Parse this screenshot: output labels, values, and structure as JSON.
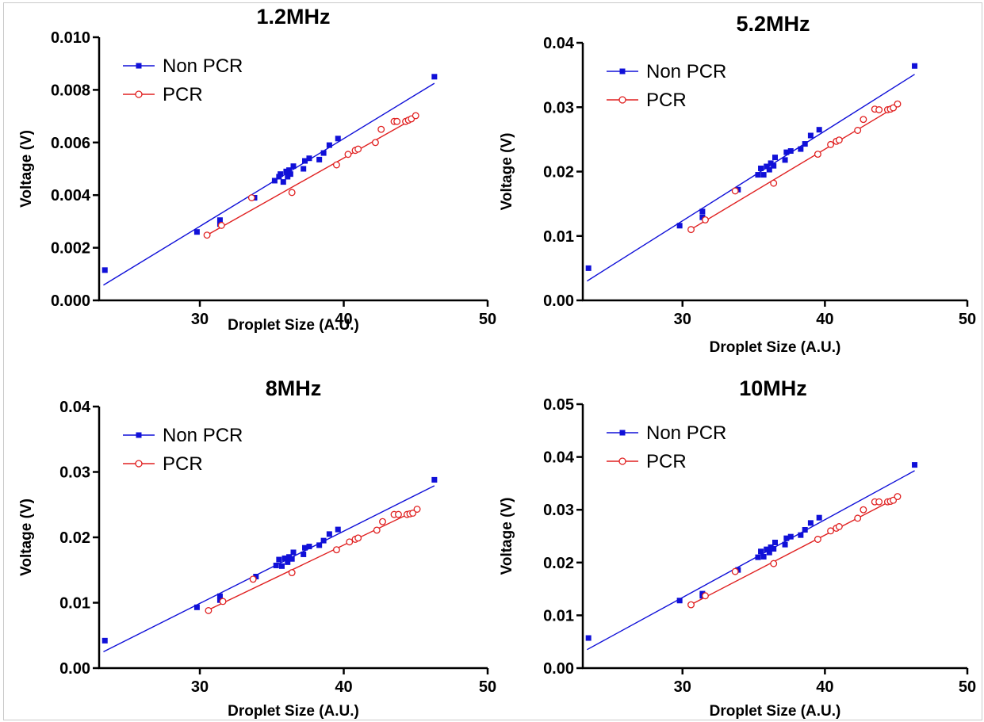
{
  "colors": {
    "non_pcr": "#1010d8",
    "pcr": "#e02020",
    "axis": "#000000"
  },
  "chart_data": [
    {
      "type": "scatter",
      "title": "1.2MHz",
      "xlabel": "Droplet Size (A.U.)",
      "ylabel": "Voltage (V)",
      "xlim": [
        23,
        50
      ],
      "ylim": [
        0,
        0.01
      ],
      "xticks": [
        30,
        40,
        50
      ],
      "xtick_labels": [
        "30",
        "40",
        "50"
      ],
      "yticks": [
        0,
        0.002,
        0.004,
        0.006,
        0.008,
        0.01
      ],
      "ytick_labels": [
        "0.000",
        "0.002",
        "0.004",
        "0.006",
        "0.008",
        "0.010"
      ],
      "legend_position": "top-left",
      "series": [
        {
          "name": "Non PCR",
          "marker": "filled-square",
          "fit_line": {
            "x": [
              23.3,
              46.3
            ],
            "y": [
              0.00058,
              0.00825
            ]
          },
          "points": [
            [
              23.4,
              0.00115
            ],
            [
              29.8,
              0.0026
            ],
            [
              31.4,
              0.00305
            ],
            [
              31.4,
              0.0029
            ],
            [
              33.8,
              0.0039
            ],
            [
              35.2,
              0.00455
            ],
            [
              35.5,
              0.0047
            ],
            [
              35.6,
              0.0048
            ],
            [
              35.8,
              0.0045
            ],
            [
              36.0,
              0.0049
            ],
            [
              36.1,
              0.0047
            ],
            [
              36.2,
              0.00495
            ],
            [
              36.3,
              0.0048
            ],
            [
              36.5,
              0.0051
            ],
            [
              37.2,
              0.005
            ],
            [
              37.3,
              0.0053
            ],
            [
              37.6,
              0.0054
            ],
            [
              38.3,
              0.00535
            ],
            [
              38.6,
              0.0056
            ],
            [
              39.0,
              0.0059
            ],
            [
              39.6,
              0.00615
            ],
            [
              46.3,
              0.0085
            ]
          ]
        },
        {
          "name": "PCR",
          "marker": "open-circle",
          "fit_line": {
            "x": [
              30.5,
              45.0
            ],
            "y": [
              0.00248,
              0.00695
            ]
          },
          "points": [
            [
              30.5,
              0.00248
            ],
            [
              31.5,
              0.00285
            ],
            [
              33.6,
              0.0039
            ],
            [
              36.4,
              0.0041
            ],
            [
              39.5,
              0.00515
            ],
            [
              40.3,
              0.00555
            ],
            [
              40.8,
              0.0057
            ],
            [
              41.0,
              0.00575
            ],
            [
              42.2,
              0.006
            ],
            [
              42.6,
              0.0065
            ],
            [
              43.5,
              0.0068
            ],
            [
              43.7,
              0.0068
            ],
            [
              44.3,
              0.0068
            ],
            [
              44.5,
              0.00685
            ],
            [
              44.7,
              0.0069
            ],
            [
              45.0,
              0.00702
            ]
          ]
        }
      ]
    },
    {
      "type": "scatter",
      "title": "5.2MHz",
      "xlabel": "Droplet Size (A.U.)",
      "ylabel": "Voltage (V)",
      "xlim": [
        23,
        50
      ],
      "ylim": [
        0,
        0.04
      ],
      "xticks": [
        30,
        40,
        50
      ],
      "xtick_labels": [
        "30",
        "40",
        "50"
      ],
      "yticks": [
        0,
        0.01,
        0.02,
        0.03,
        0.04
      ],
      "ytick_labels": [
        "0.00",
        "0.01",
        "0.02",
        "0.03",
        "0.04"
      ],
      "legend_position": "top-left",
      "series": [
        {
          "name": "Non PCR",
          "marker": "filled-square",
          "fit_line": {
            "x": [
              23.3,
              46.3
            ],
            "y": [
              0.003,
              0.0351
            ]
          },
          "points": [
            [
              23.4,
              0.005
            ],
            [
              29.8,
              0.0116
            ],
            [
              31.4,
              0.0138
            ],
            [
              31.4,
              0.0129
            ],
            [
              33.9,
              0.0172
            ],
            [
              35.3,
              0.0195
            ],
            [
              35.5,
              0.0205
            ],
            [
              35.7,
              0.0195
            ],
            [
              35.9,
              0.0208
            ],
            [
              36.1,
              0.0203
            ],
            [
              36.2,
              0.0213
            ],
            [
              36.4,
              0.0209
            ],
            [
              36.5,
              0.0222
            ],
            [
              37.2,
              0.0218
            ],
            [
              37.3,
              0.023
            ],
            [
              37.6,
              0.0232
            ],
            [
              38.3,
              0.0235
            ],
            [
              38.6,
              0.0243
            ],
            [
              39.0,
              0.0256
            ],
            [
              39.6,
              0.0265
            ],
            [
              46.3,
              0.0364
            ]
          ]
        },
        {
          "name": "PCR",
          "marker": "open-circle",
          "fit_line": {
            "x": [
              30.5,
              45.0
            ],
            "y": [
              0.0109,
              0.0301
            ]
          },
          "points": [
            [
              30.6,
              0.011
            ],
            [
              31.6,
              0.0125
            ],
            [
              33.7,
              0.017
            ],
            [
              36.4,
              0.0182
            ],
            [
              39.5,
              0.0227
            ],
            [
              40.4,
              0.0242
            ],
            [
              40.8,
              0.0247
            ],
            [
              41.0,
              0.0249
            ],
            [
              42.3,
              0.0264
            ],
            [
              42.7,
              0.0281
            ],
            [
              43.5,
              0.0297
            ],
            [
              43.8,
              0.0296
            ],
            [
              44.4,
              0.0296
            ],
            [
              44.6,
              0.0297
            ],
            [
              44.8,
              0.0299
            ],
            [
              45.1,
              0.0305
            ]
          ]
        }
      ]
    },
    {
      "type": "scatter",
      "title": "8MHz",
      "xlabel": "Droplet Size (A.U.)",
      "ylabel": "Voltage (V)",
      "xlim": [
        23,
        50
      ],
      "ylim": [
        0,
        0.04
      ],
      "xticks": [
        30,
        40,
        50
      ],
      "xtick_labels": [
        "30",
        "40",
        "50"
      ],
      "yticks": [
        0,
        0.01,
        0.02,
        0.03,
        0.04
      ],
      "ytick_labels": [
        "0.00",
        "0.01",
        "0.02",
        "0.03",
        "0.04"
      ],
      "legend_position": "top-left",
      "series": [
        {
          "name": "Non PCR",
          "marker": "filled-square",
          "fit_line": {
            "x": [
              23.3,
              46.3
            ],
            "y": [
              0.0025,
              0.0279
            ]
          },
          "points": [
            [
              23.4,
              0.0042
            ],
            [
              29.8,
              0.0093
            ],
            [
              31.4,
              0.011
            ],
            [
              31.4,
              0.0104
            ],
            [
              33.9,
              0.014
            ],
            [
              35.3,
              0.0157
            ],
            [
              35.5,
              0.0166
            ],
            [
              35.7,
              0.0156
            ],
            [
              35.9,
              0.0168
            ],
            [
              36.1,
              0.0162
            ],
            [
              36.2,
              0.017
            ],
            [
              36.4,
              0.0167
            ],
            [
              36.5,
              0.0177
            ],
            [
              37.2,
              0.0174
            ],
            [
              37.3,
              0.0184
            ],
            [
              37.6,
              0.0186
            ],
            [
              38.3,
              0.0188
            ],
            [
              38.6,
              0.0195
            ],
            [
              39.0,
              0.0205
            ],
            [
              39.6,
              0.0212
            ],
            [
              46.3,
              0.0288
            ]
          ]
        },
        {
          "name": "PCR",
          "marker": "open-circle",
          "fit_line": {
            "x": [
              30.5,
              45.0
            ],
            "y": [
              0.0088,
              0.0241
            ]
          },
          "points": [
            [
              30.6,
              0.0088
            ],
            [
              31.6,
              0.0102
            ],
            [
              33.7,
              0.0136
            ],
            [
              36.4,
              0.0146
            ],
            [
              39.5,
              0.0181
            ],
            [
              40.4,
              0.0193
            ],
            [
              40.8,
              0.0197
            ],
            [
              41.0,
              0.0199
            ],
            [
              42.3,
              0.0211
            ],
            [
              42.7,
              0.0224
            ],
            [
              43.5,
              0.0235
            ],
            [
              43.8,
              0.0235
            ],
            [
              44.4,
              0.0235
            ],
            [
              44.6,
              0.0236
            ],
            [
              44.8,
              0.0237
            ],
            [
              45.1,
              0.0243
            ]
          ]
        }
      ]
    },
    {
      "type": "scatter",
      "title": "10MHz",
      "xlabel": "Droplet Size (A.U.)",
      "ylabel": "Voltage (V)",
      "xlim": [
        23,
        50
      ],
      "ylim": [
        0,
        0.05
      ],
      "xticks": [
        30,
        40,
        50
      ],
      "xtick_labels": [
        "30",
        "40",
        "50"
      ],
      "yticks": [
        0,
        0.01,
        0.02,
        0.03,
        0.04,
        0.05
      ],
      "ytick_labels": [
        "0.00",
        "0.01",
        "0.02",
        "0.03",
        "0.04",
        "0.05"
      ],
      "legend_position": "top-left",
      "series": [
        {
          "name": "Non PCR",
          "marker": "filled-square",
          "fit_line": {
            "x": [
              23.3,
              46.3
            ],
            "y": [
              0.0035,
              0.0374
            ]
          },
          "points": [
            [
              23.4,
              0.0057
            ],
            [
              29.8,
              0.0128
            ],
            [
              31.4,
              0.0141
            ],
            [
              31.4,
              0.0137
            ],
            [
              33.9,
              0.0186
            ],
            [
              35.3,
              0.021
            ],
            [
              35.5,
              0.0221
            ],
            [
              35.7,
              0.0211
            ],
            [
              35.9,
              0.0225
            ],
            [
              36.1,
              0.0219
            ],
            [
              36.2,
              0.0229
            ],
            [
              36.4,
              0.0226
            ],
            [
              36.5,
              0.0238
            ],
            [
              37.2,
              0.0234
            ],
            [
              37.3,
              0.0246
            ],
            [
              37.6,
              0.0249
            ],
            [
              38.3,
              0.0252
            ],
            [
              38.6,
              0.0262
            ],
            [
              39.0,
              0.0275
            ],
            [
              39.6,
              0.0285
            ],
            [
              46.3,
              0.0385
            ]
          ]
        },
        {
          "name": "PCR",
          "marker": "open-circle",
          "fit_line": {
            "x": [
              30.5,
              45.0
            ],
            "y": [
              0.0119,
              0.0322
            ]
          },
          "points": [
            [
              30.6,
              0.012
            ],
            [
              31.6,
              0.0137
            ],
            [
              33.7,
              0.0183
            ],
            [
              36.4,
              0.0198
            ],
            [
              39.5,
              0.0244
            ],
            [
              40.4,
              0.026
            ],
            [
              40.8,
              0.0265
            ],
            [
              41.0,
              0.0268
            ],
            [
              42.3,
              0.0284
            ],
            [
              42.7,
              0.03
            ],
            [
              43.5,
              0.0315
            ],
            [
              43.8,
              0.0315
            ],
            [
              44.4,
              0.0315
            ],
            [
              44.6,
              0.0316
            ],
            [
              44.8,
              0.0318
            ],
            [
              45.1,
              0.0325
            ]
          ]
        }
      ]
    }
  ]
}
